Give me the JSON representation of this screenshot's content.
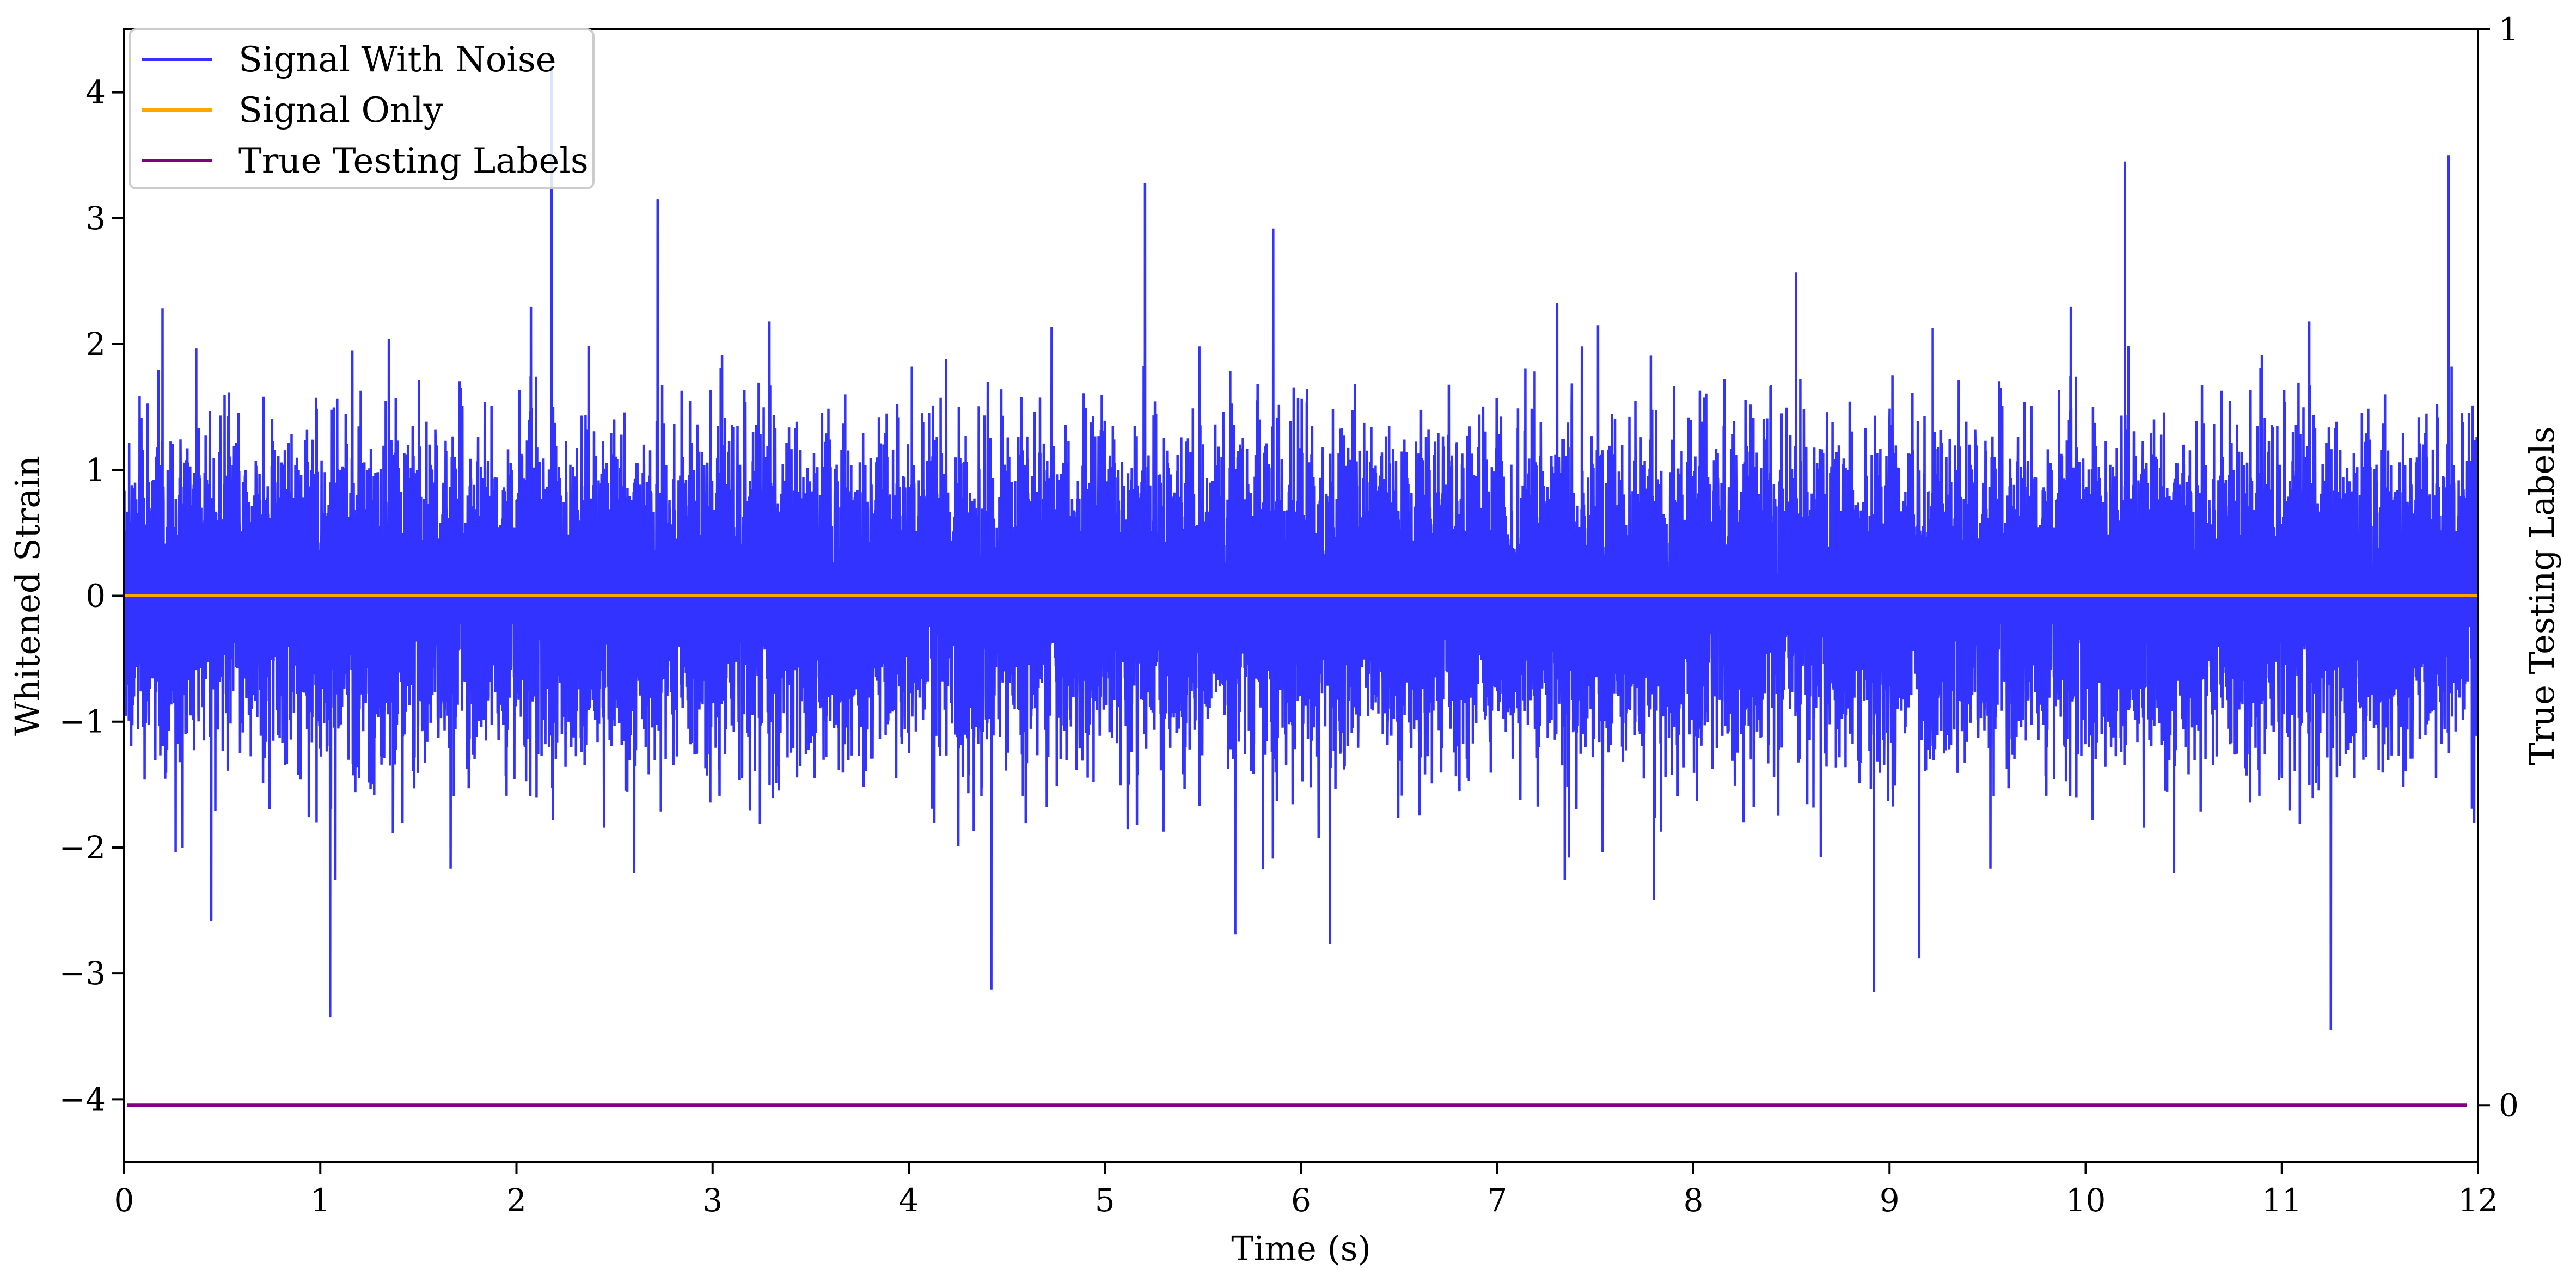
{
  "chart_data": {
    "type": "line",
    "title": "",
    "xlabel": "Time (s)",
    "ylabel": "Whitened Strain",
    "ylabel_right": "True Testing Labels",
    "xlim": [
      0,
      12
    ],
    "ylim": [
      -4.5,
      4.5
    ],
    "ylim_right": [
      -0.053,
      1.0
    ],
    "x_ticks": [
      0,
      1,
      2,
      3,
      4,
      5,
      6,
      7,
      8,
      9,
      10,
      11,
      12
    ],
    "y_ticks": [
      -4,
      -3,
      -2,
      -1,
      0,
      1,
      2,
      3,
      4
    ],
    "y_tick_labels": [
      "−4",
      "−3",
      "−2",
      "−1",
      "0",
      "1",
      "2",
      "3",
      "4"
    ],
    "y_ticks_right": [
      0,
      1
    ],
    "grid": false,
    "legend_position": "top-left",
    "series": [
      {
        "name": "Signal With Noise",
        "color": "#3333ff",
        "description": "dense noise-like strain, roughly zero-mean, std ~0.6, spikes up to ~4.2 and down to ~-3.4",
        "x_range": [
          0,
          12
        ],
        "approx_envelope": [
          -3.4,
          4.2
        ],
        "highlights": [
          {
            "x": 2.18,
            "y": 4.2
          },
          {
            "x": 11.85,
            "y": 3.5
          },
          {
            "x": 10.2,
            "y": 3.45
          },
          {
            "x": 2.72,
            "y": 3.15
          },
          {
            "x": 1.05,
            "y": -3.35
          },
          {
            "x": 11.25,
            "y": -3.45
          },
          {
            "x": 8.92,
            "y": -3.15
          }
        ]
      },
      {
        "name": "Signal Only",
        "color": "#ffa500",
        "x": [
          0,
          12
        ],
        "values": [
          0,
          0
        ]
      },
      {
        "name": "True Testing Labels",
        "color": "#800080",
        "axis": "right",
        "x": [
          0,
          12
        ],
        "values": [
          0,
          0
        ]
      }
    ]
  }
}
